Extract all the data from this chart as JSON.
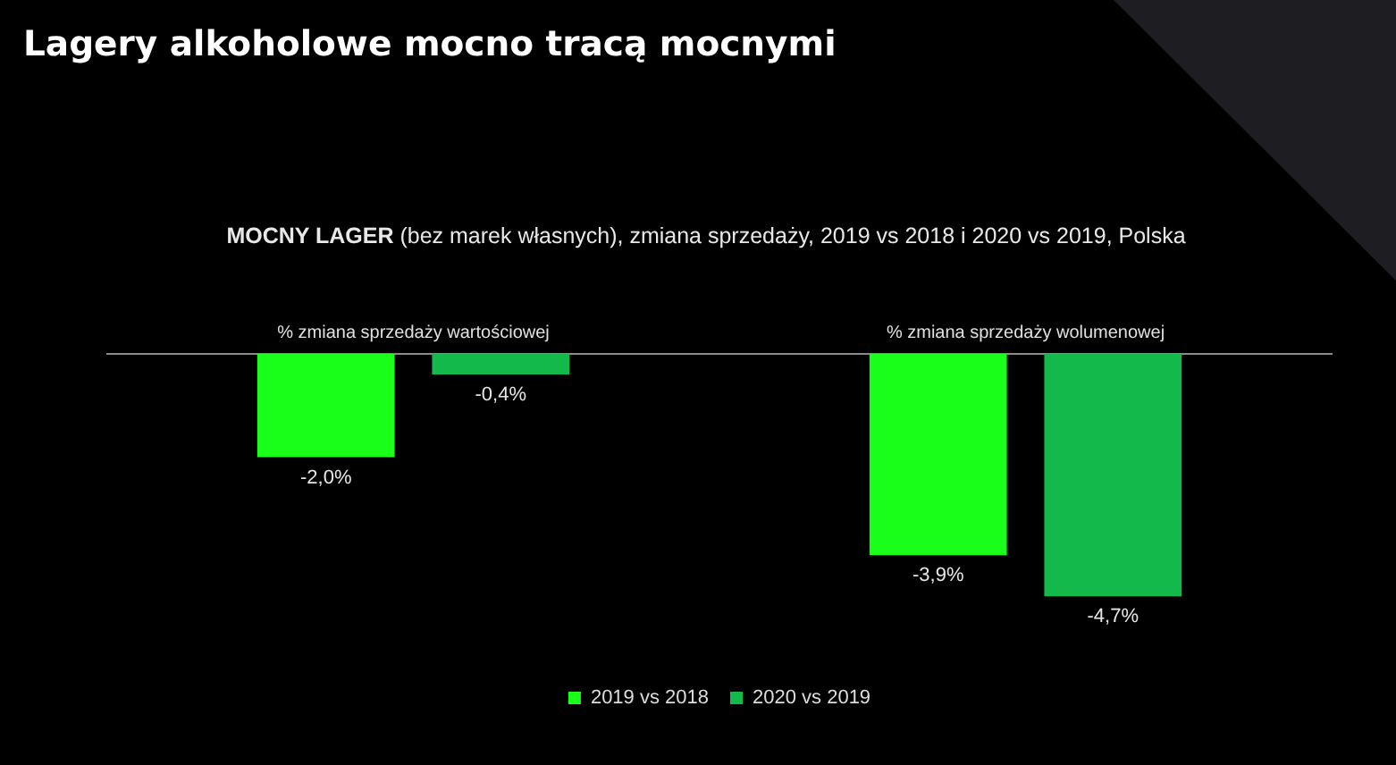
{
  "chart_data": {
    "type": "bar",
    "title": "Lagery alkoholowe mocno tracą mocnymi",
    "subtitle": "MOCNY LAGER (bez marek własnych),  zmiana sprzedaży, 2019 vs 2018 i 2020 vs 2019, Polska",
    "categories": [
      "% zmiana sprzedaży wartościowej",
      "% zmiana sprzedaży wolumenowej"
    ],
    "series": [
      {
        "name": "2019 vs 2018",
        "color": "#1aff1a",
        "values": [
          -2.0,
          -3.9
        ],
        "value_labels": [
          "-2,0%",
          "-3,9%"
        ]
      },
      {
        "name": "2020 vs 2019",
        "color": "#13b94b",
        "values": [
          -0.4,
          -4.7
        ],
        "value_labels": [
          "-0,4%",
          "-4,7%"
        ]
      }
    ],
    "legend": "bottom"
  }
}
